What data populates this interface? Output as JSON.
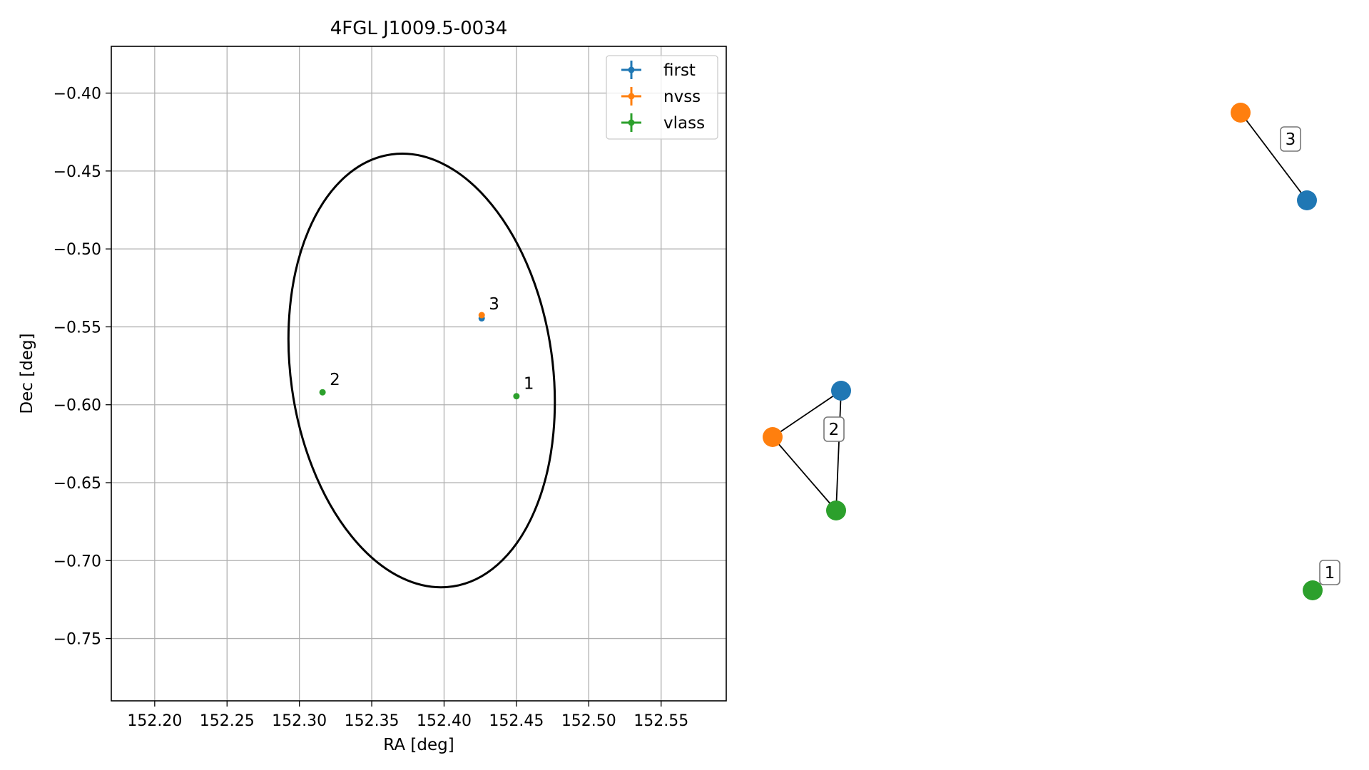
{
  "chart_data": [
    {
      "type": "scatter",
      "title": "4FGL J1009.5-0034",
      "xlabel": "RA [deg]",
      "ylabel": "Dec [deg]",
      "xlim": [
        152.17,
        152.595
      ],
      "ylim": [
        -0.79,
        -0.37
      ],
      "grid": true,
      "legend": "top-right",
      "xticks": [
        152.2,
        152.25,
        152.3,
        152.35,
        152.4,
        152.45,
        152.5,
        152.55
      ],
      "xtick_labels": [
        "152.20",
        "152.25",
        "152.30",
        "152.35",
        "152.40",
        "152.45",
        "152.50",
        "152.55"
      ],
      "yticks": [
        -0.4,
        -0.45,
        -0.5,
        -0.55,
        -0.6,
        -0.65,
        -0.7,
        -0.75
      ],
      "ytick_labels": [
        "−0.40",
        "−0.45",
        "−0.50",
        "−0.55",
        "−0.60",
        "−0.65",
        "−0.70",
        "−0.75"
      ],
      "series": [
        {
          "name": "first",
          "color": "#1f77b4",
          "points": [
            {
              "x": 152.426,
              "y": -0.5445
            }
          ]
        },
        {
          "name": "nvss",
          "color": "#ff7f0e",
          "points": [
            {
              "x": 152.426,
              "y": -0.5425
            }
          ]
        },
        {
          "name": "vlass",
          "color": "#2ca02c",
          "points": [
            {
              "x": 152.45,
              "y": -0.5945
            },
            {
              "x": 152.316,
              "y": -0.592
            }
          ]
        }
      ],
      "annotations": [
        {
          "text": "3",
          "x": 152.426,
          "y": -0.5435
        },
        {
          "text": "2",
          "x": 152.316,
          "y": -0.592
        },
        {
          "text": "1",
          "x": 152.45,
          "y": -0.5945
        }
      ],
      "ellipse": {
        "center_ra": 152.3845,
        "center_dec": -0.578,
        "semi_ra": 0.0905,
        "semi_dec": 0.14,
        "angle_deg": -8
      }
    },
    {
      "type": "network",
      "groups": [
        {
          "label": "3",
          "nodes": [
            {
              "name": "nvss",
              "color": "#ff7f0e"
            },
            {
              "name": "first",
              "color": "#1f77b4"
            }
          ],
          "edges": [
            [
              "nvss",
              "first"
            ]
          ]
        },
        {
          "label": "2",
          "nodes": [
            {
              "name": "first",
              "color": "#1f77b4"
            },
            {
              "name": "nvss",
              "color": "#ff7f0e"
            },
            {
              "name": "vlass",
              "color": "#2ca02c"
            }
          ],
          "edges": [
            [
              "first",
              "nvss"
            ],
            [
              "nvss",
              "vlass"
            ],
            [
              "first",
              "vlass"
            ]
          ]
        },
        {
          "label": "1",
          "nodes": [
            {
              "name": "vlass",
              "color": "#2ca02c"
            }
          ],
          "edges": []
        }
      ]
    }
  ]
}
